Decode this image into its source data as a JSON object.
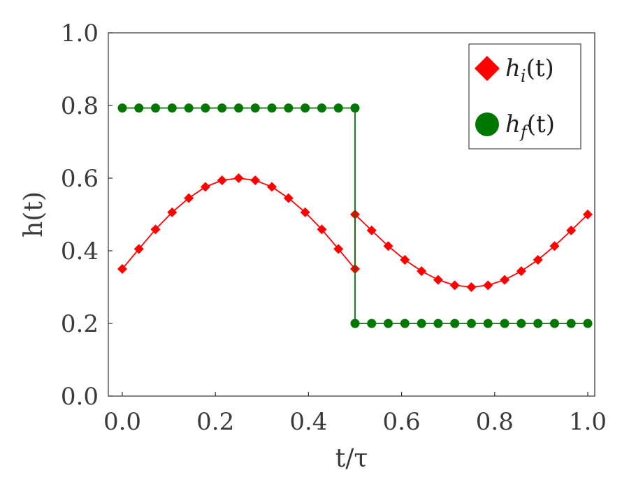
{
  "chart_data": {
    "type": "line",
    "xlabel": "t/τ",
    "ylabel": "h(t)",
    "xlim": [
      -0.03,
      1.015
    ],
    "ylim": [
      0.0,
      1.0
    ],
    "xticks": [
      0.0,
      0.2,
      0.4,
      0.6,
      0.8,
      1.0
    ],
    "yticks": [
      0.0,
      0.2,
      0.4,
      0.6,
      0.8,
      1.0
    ],
    "xtick_labels": [
      "0.0",
      "0.2",
      "0.4",
      "0.6",
      "0.8",
      "1.0"
    ],
    "ytick_labels": [
      "0.0",
      "0.2",
      "0.4",
      "0.6",
      "0.8",
      "1.0"
    ],
    "grid": false,
    "legend_position": "top-right",
    "series": [
      {
        "name": "h_i(t)",
        "legend": {
          "base": "h",
          "sub": "i",
          "suffix": "(t)"
        },
        "color": "#ff0000",
        "marker": "diamond",
        "x": [
          0.0,
          0.0357,
          0.0714,
          0.1071,
          0.1429,
          0.1786,
          0.2143,
          0.25,
          0.2857,
          0.3214,
          0.3571,
          0.3929,
          0.4286,
          0.4643,
          0.5,
          0.5,
          0.5357,
          0.5714,
          0.6071,
          0.6429,
          0.6786,
          0.7143,
          0.75,
          0.7857,
          0.8214,
          0.8571,
          0.8929,
          0.9286,
          0.9643,
          1.0
        ],
        "y": [
          0.35,
          0.405,
          0.459,
          0.506,
          0.545,
          0.576,
          0.594,
          0.6,
          0.594,
          0.576,
          0.545,
          0.506,
          0.459,
          0.405,
          0.35,
          0.5,
          0.456,
          0.413,
          0.375,
          0.344,
          0.32,
          0.305,
          0.3,
          0.305,
          0.32,
          0.344,
          0.375,
          0.413,
          0.456,
          0.5
        ]
      },
      {
        "name": "h_f(t)",
        "legend": {
          "base": "h",
          "sub": "f",
          "suffix": "(t)"
        },
        "color": "#007700",
        "marker": "circle",
        "x": [
          0.0,
          0.0357,
          0.0714,
          0.1071,
          0.1429,
          0.1786,
          0.2143,
          0.25,
          0.2857,
          0.3214,
          0.3571,
          0.3929,
          0.4286,
          0.4643,
          0.5,
          0.5,
          0.5357,
          0.5714,
          0.6071,
          0.6429,
          0.6786,
          0.7143,
          0.75,
          0.7857,
          0.8214,
          0.8571,
          0.8929,
          0.9286,
          0.9643,
          1.0
        ],
        "y": [
          0.793,
          0.793,
          0.793,
          0.793,
          0.793,
          0.793,
          0.793,
          0.793,
          0.793,
          0.793,
          0.793,
          0.793,
          0.793,
          0.793,
          0.793,
          0.2,
          0.2,
          0.2,
          0.2,
          0.2,
          0.2,
          0.2,
          0.2,
          0.2,
          0.2,
          0.2,
          0.2,
          0.2,
          0.2,
          0.2
        ]
      }
    ]
  }
}
